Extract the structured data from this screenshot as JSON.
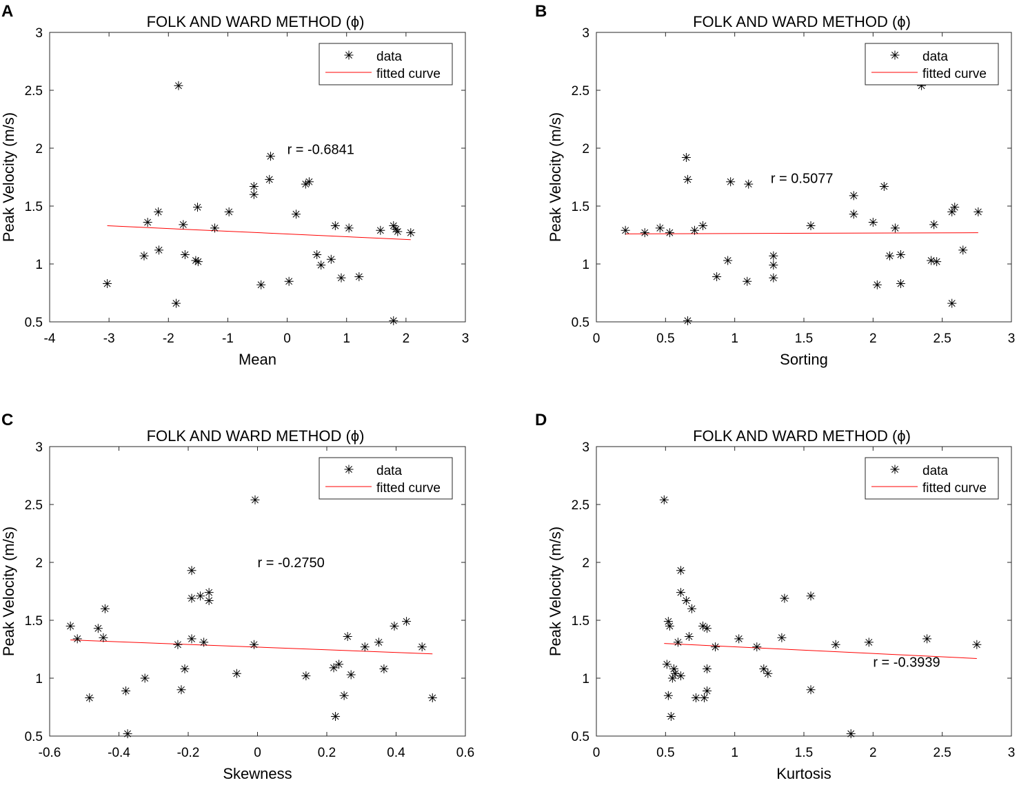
{
  "figure": {
    "marker_color": "#000000",
    "line_color": "#ff0000",
    "axis_color": "#262626"
  },
  "chart_data": [
    {
      "panel": "A",
      "type": "scatter",
      "title": "FOLK AND WARD METHOD (ϕ)",
      "xlabel": "Mean",
      "ylabel": "Peak Velocity (m/s)",
      "xlim": [
        -4,
        3
      ],
      "ylim": [
        0.5,
        3
      ],
      "xticks": [
        "-4",
        "-3",
        "-2",
        "-1",
        "0",
        "1",
        "2",
        "3"
      ],
      "xtick_values": [
        -4,
        -3,
        -2,
        -1,
        0,
        1,
        2,
        3
      ],
      "yticks": [
        "0.5",
        "1",
        "1.5",
        "2",
        "2.5",
        "3"
      ],
      "ytick_values": [
        0.5,
        1,
        1.5,
        2,
        2.5,
        3
      ],
      "legend": {
        "position": "top-right",
        "entries": [
          "data",
          "fitted curve"
        ]
      },
      "annotation": {
        "text": "r = -0.6841",
        "x": 0.0,
        "y": 1.99
      },
      "series": [
        {
          "name": "data",
          "x": [
            -3.03,
            -2.35,
            -2.41,
            -2.17,
            -2.16,
            -1.83,
            -1.87,
            -1.75,
            -1.72,
            -1.54,
            -1.5,
            -1.51,
            -1.22,
            -0.98,
            -0.56,
            -0.56,
            -0.44,
            -0.3,
            -0.28,
            0.03,
            0.15,
            0.31,
            0.37,
            0.5,
            0.57,
            0.74,
            0.81,
            0.91,
            1.04,
            1.21,
            1.57,
            1.79,
            1.79,
            1.83,
            1.86,
            2.08
          ],
          "y": [
            0.83,
            1.36,
            1.07,
            1.45,
            1.12,
            2.54,
            0.66,
            1.34,
            1.08,
            1.03,
            1.02,
            1.49,
            1.31,
            1.45,
            1.67,
            1.6,
            0.82,
            1.73,
            1.93,
            0.85,
            1.43,
            1.69,
            1.71,
            1.08,
            0.99,
            1.04,
            1.33,
            0.88,
            1.31,
            0.89,
            1.29,
            1.33,
            0.51,
            1.3,
            1.28,
            1.27
          ]
        },
        {
          "name": "fitted curve",
          "x": [
            -3.03,
            2.08
          ],
          "y": [
            1.33,
            1.21
          ]
        }
      ]
    },
    {
      "panel": "B",
      "type": "scatter",
      "title": "FOLK AND WARD METHOD (ϕ)",
      "xlabel": "Sorting",
      "ylabel": "Peak Velocity (m/s)",
      "xlim": [
        0,
        3
      ],
      "ylim": [
        0.5,
        3
      ],
      "xticks": [
        "0",
        "0.5",
        "1",
        "1.5",
        "2",
        "2.5",
        "3"
      ],
      "xtick_values": [
        0,
        0.5,
        1,
        1.5,
        2,
        2.5,
        3
      ],
      "yticks": [
        "0.5",
        "1",
        "1.5",
        "2",
        "2.5",
        "3"
      ],
      "ytick_values": [
        0.5,
        1,
        1.5,
        2,
        2.5,
        3
      ],
      "legend": {
        "position": "top-right",
        "entries": [
          "data",
          "fitted curve"
        ]
      },
      "annotation": {
        "text": "r = 0.5077",
        "x": 1.26,
        "y": 1.74
      },
      "series": [
        {
          "name": "data",
          "x": [
            0.21,
            0.35,
            0.46,
            0.53,
            0.65,
            0.66,
            0.66,
            0.71,
            0.77,
            0.87,
            0.95,
            0.97,
            1.09,
            1.1,
            1.28,
            1.28,
            1.28,
            1.55,
            1.86,
            1.86,
            2.0,
            2.03,
            2.08,
            2.12,
            2.16,
            2.2,
            2.2,
            2.35,
            2.42,
            2.44,
            2.46,
            2.57,
            2.57,
            2.59,
            2.65,
            2.76
          ],
          "y": [
            1.29,
            1.27,
            1.31,
            1.27,
            1.92,
            1.73,
            0.51,
            1.29,
            1.33,
            0.89,
            1.03,
            1.71,
            0.85,
            1.69,
            1.07,
            0.99,
            0.88,
            1.33,
            1.59,
            1.43,
            1.36,
            0.82,
            1.67,
            1.07,
            1.31,
            1.08,
            0.83,
            2.54,
            1.03,
            1.34,
            1.02,
            0.66,
            1.45,
            1.49,
            1.12,
            1.45
          ]
        },
        {
          "name": "fitted curve",
          "x": [
            0.21,
            2.76
          ],
          "y": [
            1.26,
            1.27
          ]
        }
      ]
    },
    {
      "panel": "C",
      "type": "scatter",
      "title": "FOLK AND WARD METHOD (ϕ)",
      "xlabel": "Skewness",
      "ylabel": "Peak Velocity (m/s)",
      "xlim": [
        -0.6,
        0.6
      ],
      "ylim": [
        0.5,
        3
      ],
      "xticks": [
        "-0.6",
        "-0.4",
        "-0.2",
        "0",
        "0.2",
        "0.4",
        "0.6"
      ],
      "xtick_values": [
        -0.6,
        -0.4,
        -0.2,
        0,
        0.2,
        0.4,
        0.6
      ],
      "yticks": [
        "0.5",
        "1",
        "1.5",
        "2",
        "2.5",
        "3"
      ],
      "ytick_values": [
        0.5,
        1,
        1.5,
        2,
        2.5,
        3
      ],
      "legend": {
        "position": "top-right",
        "entries": [
          "data",
          "fitted curve"
        ]
      },
      "annotation": {
        "text": "r = -0.2750",
        "x": 0.0,
        "y": 2.0
      },
      "series": [
        {
          "name": "data",
          "x": [
            -0.54,
            -0.52,
            -0.485,
            -0.46,
            -0.445,
            -0.44,
            -0.38,
            -0.375,
            -0.325,
            -0.23,
            -0.22,
            -0.21,
            -0.19,
            -0.19,
            -0.19,
            -0.165,
            -0.155,
            -0.14,
            -0.14,
            -0.06,
            -0.01,
            -0.007,
            0.14,
            0.22,
            0.235,
            0.25,
            0.26,
            0.27,
            0.225,
            0.31,
            0.35,
            0.365,
            0.395,
            0.43,
            0.475,
            0.505
          ],
          "y": [
            1.45,
            1.34,
            0.83,
            1.43,
            1.35,
            1.6,
            0.89,
            0.52,
            1.0,
            1.29,
            0.9,
            1.08,
            1.34,
            1.93,
            1.69,
            1.71,
            1.31,
            1.74,
            1.67,
            1.04,
            1.29,
            2.54,
            1.02,
            1.09,
            1.12,
            0.85,
            1.36,
            1.03,
            0.67,
            1.27,
            1.31,
            1.08,
            1.45,
            1.49,
            1.27,
            0.83
          ]
        },
        {
          "name": "fitted curve",
          "x": [
            -0.54,
            0.505
          ],
          "y": [
            1.33,
            1.21
          ]
        }
      ]
    },
    {
      "panel": "D",
      "type": "scatter",
      "title": "FOLK AND WARD METHOD (ϕ)",
      "xlabel": "Kurtosis",
      "ylabel": "Peak Velocity (m/s)",
      "xlim": [
        0,
        3
      ],
      "ylim": [
        0.5,
        3
      ],
      "xticks": [
        "0",
        "0.5",
        "1",
        "1.5",
        "2",
        "2.5",
        "3"
      ],
      "xtick_values": [
        0,
        0.5,
        1,
        1.5,
        2,
        2.5,
        3
      ],
      "yticks": [
        "0.5",
        "1",
        "1.5",
        "2",
        "2.5",
        "3"
      ],
      "ytick_values": [
        0.5,
        1,
        1.5,
        2,
        2.5,
        3
      ],
      "legend": {
        "position": "top-right",
        "entries": [
          "data",
          "fitted curve"
        ]
      },
      "annotation": {
        "text": "r = -0.3939",
        "x": 2.0,
        "y": 1.14
      },
      "series": [
        {
          "name": "data",
          "x": [
            0.49,
            0.51,
            0.52,
            0.53,
            0.52,
            0.54,
            0.55,
            0.56,
            0.57,
            0.59,
            0.61,
            0.61,
            0.61,
            0.65,
            0.67,
            0.69,
            0.72,
            0.77,
            0.78,
            0.8,
            0.8,
            0.8,
            0.86,
            1.03,
            1.16,
            1.21,
            1.24,
            1.34,
            1.36,
            1.55,
            1.55,
            1.73,
            1.84,
            1.97,
            2.39,
            2.75
          ],
          "y": [
            2.54,
            1.12,
            1.49,
            1.45,
            0.85,
            0.67,
            1.0,
            1.08,
            1.04,
            1.31,
            1.02,
            1.93,
            1.74,
            1.67,
            1.36,
            1.6,
            0.83,
            1.45,
            0.83,
            1.43,
            1.08,
            0.89,
            1.27,
            1.34,
            1.27,
            1.08,
            1.04,
            1.35,
            1.69,
            1.71,
            0.9,
            1.29,
            0.52,
            1.31,
            1.34,
            1.29
          ]
        },
        {
          "name": "fitted curve",
          "x": [
            0.49,
            2.75
          ],
          "y": [
            1.3,
            1.17
          ]
        }
      ]
    }
  ]
}
